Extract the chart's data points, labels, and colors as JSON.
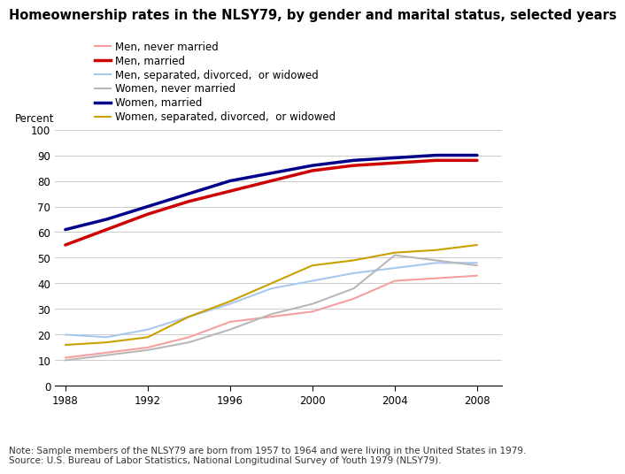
{
  "title": "Homeownership rates in the NLSY79, by gender and marital status, selected years",
  "ylabel": "Percent",
  "note": "Note: Sample members of the NLSY79 are born from 1957 to 1964 and were living in the United States in 1979.\nSource: U.S. Bureau of Labor Statistics, National Longitudinal Survey of Youth 1979 (NLSY79).",
  "years": [
    1988,
    1990,
    1992,
    1994,
    1996,
    1998,
    2000,
    2002,
    2004,
    2006,
    2008
  ],
  "series": [
    {
      "label": "Men, never married",
      "color": "#f4a0a0",
      "linewidth": 1.5,
      "values": [
        11,
        13,
        15,
        19,
        25,
        27,
        29,
        34,
        41,
        42,
        43
      ]
    },
    {
      "label": "Men, married",
      "color": "#cc0000",
      "linewidth": 2.5,
      "values": [
        55,
        61,
        67,
        72,
        76,
        80,
        84,
        86,
        87,
        88,
        88
      ]
    },
    {
      "label": "Men, separated, divorced,  or widowed",
      "color": "#a8c8f0",
      "linewidth": 1.5,
      "values": [
        20,
        19,
        22,
        27,
        32,
        38,
        41,
        44,
        46,
        48,
        48
      ]
    },
    {
      "label": "Women, never married",
      "color": "#b8b8b8",
      "linewidth": 1.5,
      "values": [
        10,
        12,
        14,
        17,
        22,
        28,
        32,
        38,
        51,
        49,
        47
      ]
    },
    {
      "label": "Women, married",
      "color": "#00008b",
      "linewidth": 2.5,
      "values": [
        61,
        65,
        70,
        75,
        80,
        83,
        86,
        88,
        89,
        90,
        90
      ]
    },
    {
      "label": "Women, separated, divorced,  or widowed",
      "color": "#c8a000",
      "linewidth": 1.5,
      "values": [
        16,
        17,
        19,
        27,
        33,
        40,
        47,
        49,
        52,
        53,
        55
      ]
    }
  ],
  "xlim": [
    1987.5,
    2009.2
  ],
  "ylim": [
    0,
    100
  ],
  "yticks": [
    0,
    10,
    20,
    30,
    40,
    50,
    60,
    70,
    80,
    90,
    100
  ],
  "xticks": [
    1988,
    1992,
    1996,
    2000,
    2004,
    2008
  ],
  "background_color": "#ffffff",
  "title_fontsize": 10.5,
  "label_fontsize": 8.5,
  "tick_fontsize": 8.5,
  "note_fontsize": 7.5
}
